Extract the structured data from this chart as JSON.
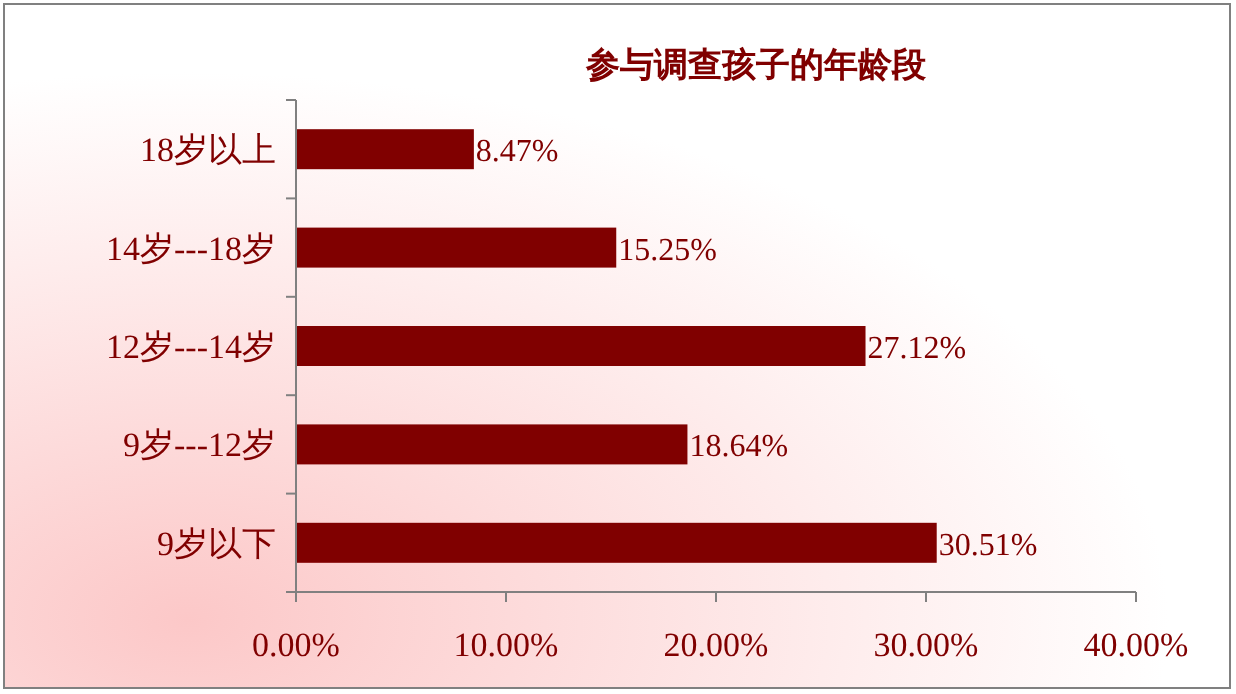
{
  "chart_data": {
    "type": "bar",
    "orientation": "horizontal",
    "title": "参与调查孩子的年龄段",
    "categories": [
      "18岁以上",
      "14岁---18岁",
      "12岁---14岁",
      "9岁---12岁",
      "9岁以下"
    ],
    "values": [
      8.47,
      15.25,
      27.12,
      18.64,
      30.51
    ],
    "value_labels": [
      "8.47%",
      "15.25%",
      "27.12%",
      "18.64%",
      "30.51%"
    ],
    "color": "#800000",
    "xlim": [
      0,
      40
    ],
    "xticks": [
      {
        "value": 0,
        "label": "0.00%"
      },
      {
        "value": 10,
        "label": "10.00%"
      },
      {
        "value": 20,
        "label": "20.00%"
      },
      {
        "value": 30,
        "label": "30.00%"
      },
      {
        "value": 40,
        "label": "40.00%"
      }
    ],
    "grid": false
  }
}
